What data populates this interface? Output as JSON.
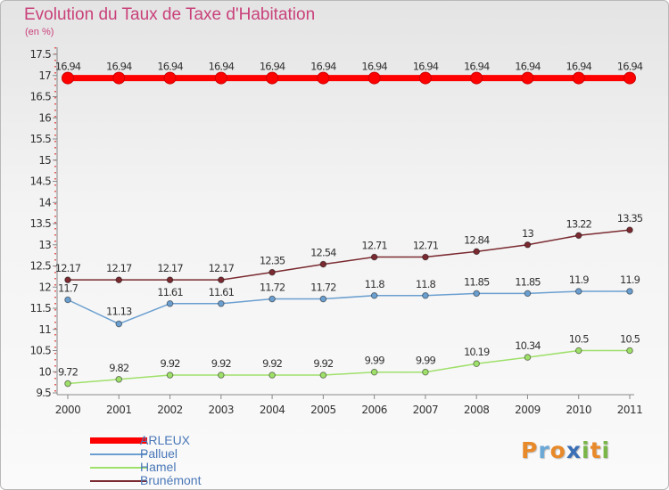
{
  "header": {
    "title": "Evolution du Taux de Taxe d'Habitation",
    "subtitle": "(en %)"
  },
  "logo": {
    "letters": [
      "P",
      "r",
      "o",
      "x",
      "i",
      "t",
      "i"
    ],
    "colors": [
      "#e8892a",
      "#6aa8d6",
      "#e8892a",
      "#3a6fb5",
      "#7ab648",
      "#e8892a",
      "#7ab648"
    ]
  },
  "chart_data": {
    "type": "line",
    "categories": [
      "2000",
      "2001",
      "2002",
      "2003",
      "2004",
      "2005",
      "2006",
      "2007",
      "2008",
      "2009",
      "2010",
      "2011"
    ],
    "ylim": [
      9.5,
      17.5
    ],
    "yticks": [
      "9.5",
      "10",
      "10.5",
      "11",
      "11.5",
      "12",
      "12.5",
      "13",
      "13.5",
      "14",
      "14.5",
      "15",
      "15.5",
      "16",
      "16.5",
      "17",
      "17.5"
    ],
    "ylabel": "",
    "xlabel": "",
    "grid": false,
    "legend": "bottom-left",
    "series": [
      {
        "name": "ARLEUX",
        "color": "#ff0000",
        "values": [
          16.94,
          16.94,
          16.94,
          16.94,
          16.94,
          16.94,
          16.94,
          16.94,
          16.94,
          16.94,
          16.94,
          16.94
        ],
        "labels": [
          "16.94",
          "16.94",
          "16.94",
          "16.94",
          "16.94",
          "16.94",
          "16.94",
          "16.94",
          "16.94",
          "16.94",
          "16.94",
          "16.94"
        ]
      },
      {
        "name": "Palluel",
        "color": "#6b9fd0",
        "values": [
          11.7,
          11.13,
          11.61,
          11.61,
          11.72,
          11.72,
          11.8,
          11.8,
          11.85,
          11.85,
          11.9,
          11.9
        ],
        "labels": [
          "11.7",
          "11.13",
          "11.61",
          "11.61",
          "11.72",
          "11.72",
          "11.8",
          "11.8",
          "11.85",
          "11.85",
          "11.9",
          "11.9"
        ]
      },
      {
        "name": "Hamel",
        "color": "#9fe06a",
        "values": [
          9.72,
          9.82,
          9.92,
          9.92,
          9.92,
          9.92,
          9.99,
          9.99,
          10.19,
          10.34,
          10.5,
          10.5
        ],
        "labels": [
          "9.72",
          "9.82",
          "9.92",
          "9.92",
          "9.92",
          "9.92",
          "9.99",
          "9.99",
          "10.19",
          "10.34",
          "10.5",
          "10.5"
        ]
      },
      {
        "name": "Brunémont",
        "color": "#7a2a30",
        "values": [
          12.17,
          12.17,
          12.17,
          12.17,
          12.35,
          12.54,
          12.71,
          12.71,
          12.84,
          13,
          13.22,
          13.35
        ],
        "labels": [
          "12.17",
          "12.17",
          "12.17",
          "12.17",
          "12.35",
          "12.54",
          "12.71",
          "12.71",
          "12.84",
          "13",
          "13.22",
          "13.35"
        ]
      }
    ]
  }
}
